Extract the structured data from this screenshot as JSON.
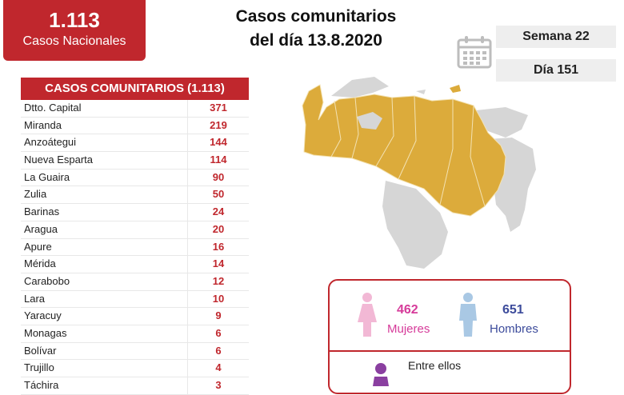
{
  "total": {
    "value": "1.113",
    "label": "Casos Nacionales"
  },
  "title": {
    "line1": "Casos comunitarios",
    "line2": "del día 13.8.2020"
  },
  "week": "Semana 22",
  "day": "Día 151",
  "table": {
    "header": "CASOS COMUNITARIOS (1.113)",
    "rows": [
      {
        "state": "Dtto. Capital",
        "count": "371"
      },
      {
        "state": "Miranda",
        "count": "219"
      },
      {
        "state": "Anzoátegui",
        "count": "144"
      },
      {
        "state": "Nueva Esparta",
        "count": "114"
      },
      {
        "state": "La Guaira",
        "count": "90"
      },
      {
        "state": "Zulia",
        "count": "50"
      },
      {
        "state": "Barinas",
        "count": "24"
      },
      {
        "state": "Aragua",
        "count": "20"
      },
      {
        "state": "Apure",
        "count": "16"
      },
      {
        "state": "Mérida",
        "count": "14"
      },
      {
        "state": "Carabobo",
        "count": "12"
      },
      {
        "state": "Lara",
        "count": "10"
      },
      {
        "state": "Yaracuy",
        "count": "9"
      },
      {
        "state": "Monagas",
        "count": "6"
      },
      {
        "state": "Bolívar",
        "count": "6"
      },
      {
        "state": "Trujillo",
        "count": "4"
      },
      {
        "state": "Táchira",
        "count": "3"
      }
    ]
  },
  "gender": {
    "female": {
      "value": "462",
      "label": "Mujeres"
    },
    "male": {
      "value": "651",
      "label": "Hombres"
    },
    "among": "Entre ellos"
  },
  "colors": {
    "accent": "#c0272d",
    "map_affected": "#dcab3b",
    "map_other": "#d6d6d6",
    "female": "#d63b9a",
    "male": "#3c4b9b"
  },
  "icons": [
    "calendar-icon",
    "female-icon",
    "male-icon",
    "person-icon"
  ]
}
